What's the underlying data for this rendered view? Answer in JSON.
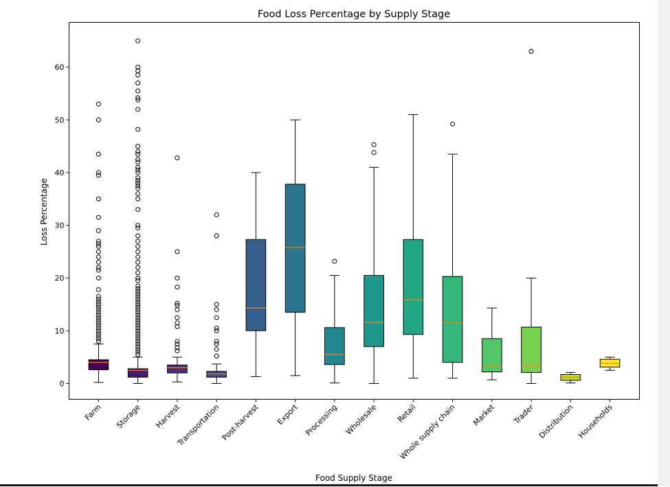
{
  "chart_data": {
    "type": "box",
    "title": "Food Loss Percentage by Supply Stage",
    "xlabel": "Food Supply Stage",
    "ylabel": "Loss Percentage",
    "ylim": [
      -3,
      68.5
    ],
    "yticks": [
      0,
      10,
      20,
      30,
      40,
      50,
      60
    ],
    "grid": false,
    "legend": "none",
    "boxes": [
      {
        "category": "Farm",
        "whislo": 0.2,
        "q1": 2.6,
        "median": 4.0,
        "q3": 4.5,
        "whishi": 7.5,
        "fill": "#440154",
        "fliers": [
          8.0,
          8.5,
          9.0,
          9.5,
          10.0,
          10.5,
          11.0,
          11.5,
          12.0,
          12.5,
          13.0,
          13.5,
          14.0,
          14.5,
          15.0,
          15.5,
          16.0,
          16.5,
          17.8,
          20.0,
          21.5,
          22.0,
          23.0,
          24.0,
          25.0,
          26.0,
          26.5,
          27.0,
          29.0,
          31.5,
          35.0,
          39.5,
          40.0,
          43.5,
          50.0,
          53.0
        ]
      },
      {
        "category": "Storage",
        "whislo": 0.0,
        "q1": 1.2,
        "median": 2.5,
        "q3": 2.8,
        "whishi": 5.0,
        "fill": "#481a6c",
        "fliers": [
          5.5,
          6.0,
          6.5,
          7.0,
          7.5,
          8.0,
          8.5,
          9.0,
          9.5,
          10.0,
          10.5,
          11.0,
          11.5,
          12.0,
          12.5,
          13.0,
          13.5,
          14.0,
          14.5,
          15.0,
          15.5,
          16.0,
          16.5,
          17.0,
          17.5,
          18.0,
          18.5,
          19.5,
          20.0,
          21.0,
          22.0,
          23.0,
          24.0,
          25.0,
          26.0,
          27.0,
          28.0,
          29.5,
          30.0,
          33.0,
          35.0,
          36.0,
          37.0,
          37.5,
          38.0,
          38.5,
          39.0,
          40.0,
          40.5,
          41.0,
          42.0,
          42.5,
          43.5,
          44.0,
          45.0,
          48.2,
          52.0,
          53.8,
          54.2,
          55.5,
          57.0,
          58.5,
          59.3,
          60.0,
          65.0
        ]
      },
      {
        "category": "Harvest",
        "whislo": 0.3,
        "q1": 2.0,
        "median": 3.0,
        "q3": 3.5,
        "whishi": 5.0,
        "fill": "#472f7d",
        "fliers": [
          6.2,
          6.8,
          7.5,
          8.0,
          10.8,
          11.5,
          12.5,
          14.0,
          14.8,
          15.2,
          18.3,
          20.0,
          25.0,
          42.8
        ]
      },
      {
        "category": "Transportation",
        "whislo": 0.0,
        "q1": 1.2,
        "median": 1.8,
        "q3": 2.3,
        "whishi": 3.7,
        "fill": "#3e4a89",
        "fliers": [
          5.2,
          6.5,
          7.5,
          8.0,
          10.0,
          10.5,
          12.5,
          14.0,
          15.0,
          28.0,
          32.0
        ]
      },
      {
        "category": "Post-harvest",
        "whislo": 1.3,
        "q1": 10.0,
        "median": 14.3,
        "q3": 27.3,
        "whishi": 40.0,
        "fill": "#355f8d",
        "fliers": []
      },
      {
        "category": "Export",
        "whislo": 1.5,
        "q1": 13.5,
        "median": 25.8,
        "q3": 37.8,
        "whishi": 50.0,
        "fill": "#2b748e",
        "fliers": []
      },
      {
        "category": "Processing",
        "whislo": 0.1,
        "q1": 3.6,
        "median": 5.5,
        "q3": 10.6,
        "whishi": 20.5,
        "fill": "#23888e",
        "fliers": [
          23.2
        ]
      },
      {
        "category": "Wholesale",
        "whislo": 0.0,
        "q1": 7.0,
        "median": 11.6,
        "q3": 20.5,
        "whishi": 41.0,
        "fill": "#1f988b",
        "fliers": [
          43.8,
          45.3
        ]
      },
      {
        "category": "Retail",
        "whislo": 1.0,
        "q1": 9.3,
        "median": 15.9,
        "q3": 27.3,
        "whishi": 51.0,
        "fill": "#22a884",
        "fliers": []
      },
      {
        "category": "Whole supply chain",
        "whislo": 1.0,
        "q1": 4.0,
        "median": 11.5,
        "q3": 20.3,
        "whishi": 43.5,
        "fill": "#35b779",
        "fliers": [
          49.2
        ]
      },
      {
        "category": "Market",
        "whislo": 0.7,
        "q1": 2.2,
        "median": 3.3,
        "q3": 8.5,
        "whishi": 14.3,
        "fill": "#54c568",
        "fliers": []
      },
      {
        "category": "Trader",
        "whislo": 0.0,
        "q1": 2.1,
        "median": 3.3,
        "q3": 10.7,
        "whishi": 20.0,
        "fill": "#7ad151",
        "fliers": [
          63.0
        ]
      },
      {
        "category": "Distribution",
        "whislo": 0.1,
        "q1": 0.6,
        "median": 1.2,
        "q3": 1.7,
        "whishi": 2.1,
        "fill": "#bade28",
        "fliers": []
      },
      {
        "category": "Households",
        "whislo": 2.5,
        "q1": 3.1,
        "median": 3.8,
        "q3": 4.6,
        "whishi": 5.0,
        "fill": "#fde725",
        "fliers": []
      }
    ],
    "median_color": "#ff7f0e"
  }
}
